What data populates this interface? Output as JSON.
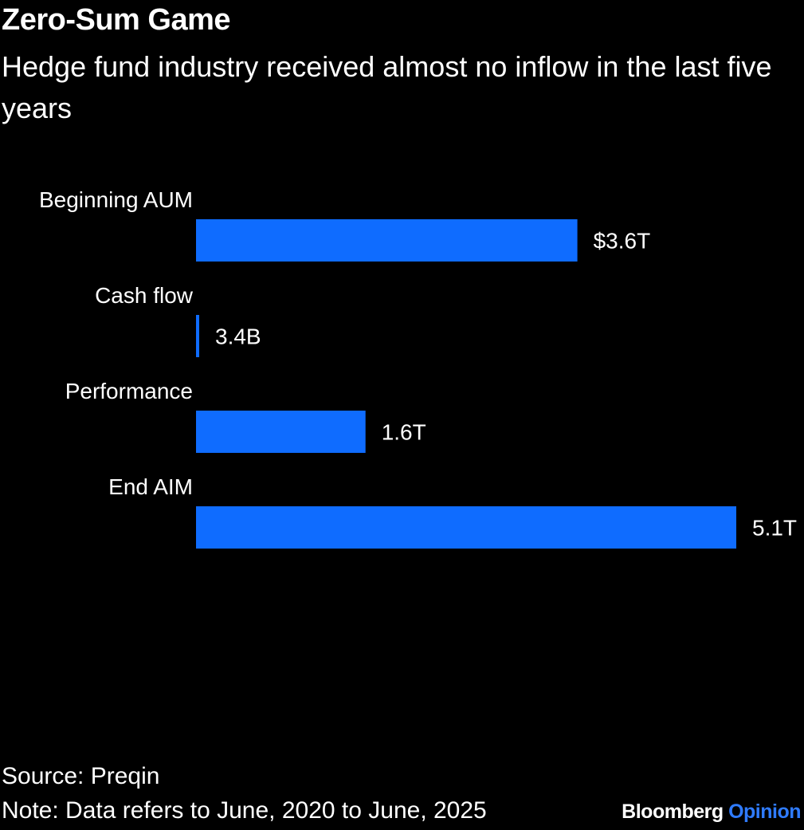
{
  "header": {
    "title": "Zero-Sum Game",
    "subtitle": "Hedge fund industry received almost no inflow in the last five years"
  },
  "footer": {
    "source": "Source: Preqin",
    "note": "Note: Data refers to June, 2020 to June, 2025",
    "brand_primary": "Bloomberg",
    "brand_secondary": "Opinion"
  },
  "colors": {
    "background": "#000000",
    "bar": "#0f6cff",
    "text": "#ffffff",
    "brand_accent": "#2f7bff"
  },
  "chart_data": {
    "type": "bar",
    "orientation": "horizontal",
    "categories": [
      "Beginning AUM",
      "Cash flow",
      "Performance",
      "End AIM"
    ],
    "values": [
      3.6,
      0.0034,
      1.6,
      5.1
    ],
    "units": "trillion USD",
    "data_labels": [
      "$3.6T",
      "3.4B",
      "1.6T",
      "5.1T"
    ],
    "title": "Zero-Sum Game",
    "subtitle": "Hedge fund industry received almost no inflow in the last five years",
    "xlim": [
      0,
      5.1
    ],
    "grid": false
  }
}
